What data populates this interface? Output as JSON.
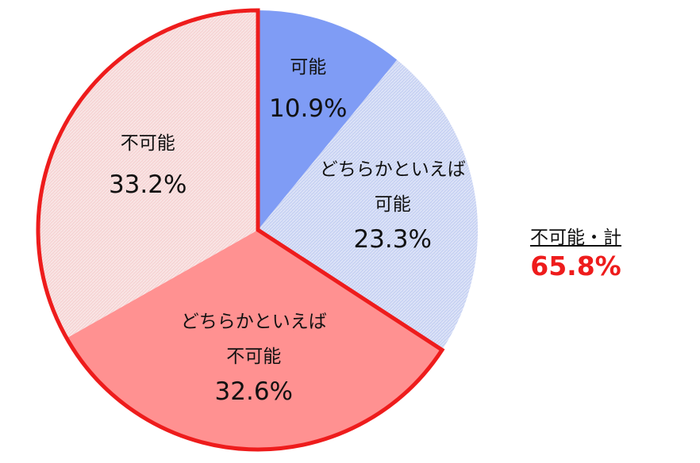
{
  "chart_data": {
    "type": "pie",
    "categories": [
      "可能",
      "どちらかといえば\n可能",
      "どちらかといえば\n不可能",
      "不可能"
    ],
    "values": [
      10.9,
      23.3,
      32.6,
      33.2
    ],
    "value_labels": [
      "10.9%",
      "23.3%",
      "32.6%",
      "33.2%"
    ],
    "colors": [
      "#7f9cf5",
      "#c9d3f3",
      "#ff9191",
      "#f6d6d6"
    ],
    "hatched": [
      false,
      true,
      false,
      true
    ],
    "highlight": [
      2,
      3
    ],
    "highlight_color": "#ee1c1c",
    "annotation": {
      "text": "不可能・計",
      "value": 65.8,
      "value_label": "65.8%"
    }
  }
}
